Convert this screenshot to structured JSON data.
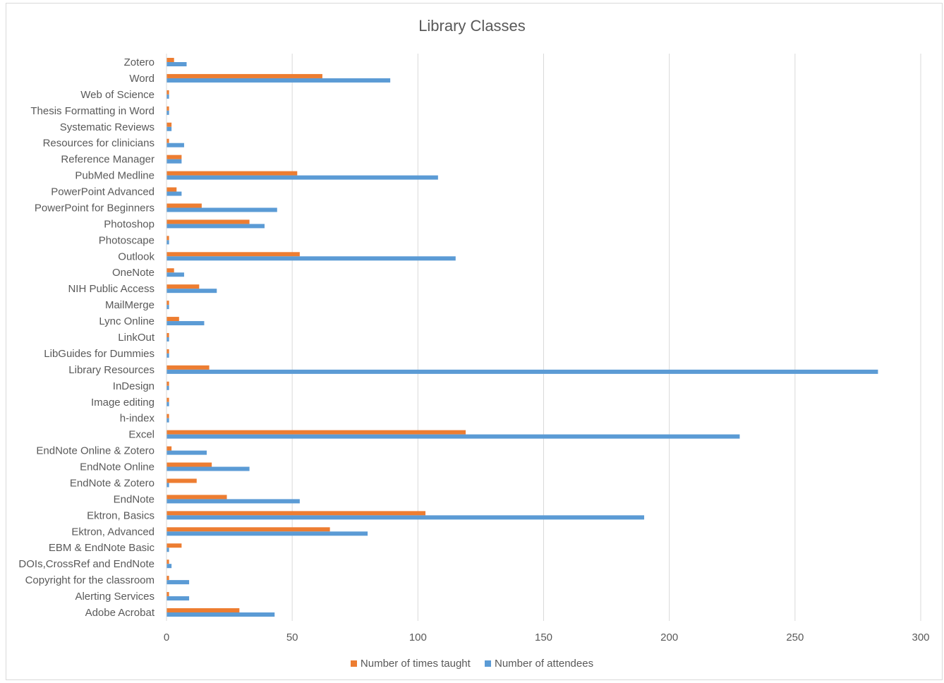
{
  "colors": {
    "taught": "#ed7d31",
    "attendees": "#5b9bd5",
    "grid": "#d9d9d9",
    "text": "#595959"
  },
  "chart_data": {
    "type": "bar",
    "orientation": "horizontal",
    "title": "Library Classes",
    "xlim": [
      0,
      300
    ],
    "xticks": [
      0,
      50,
      100,
      150,
      200,
      250,
      300
    ],
    "grid": true,
    "legend": "bottom",
    "categories": [
      "Zotero",
      "Word",
      "Web of Science",
      "Thesis Formatting in Word",
      "Systematic Reviews",
      "Resources for clinicians",
      "Reference Manager",
      "PubMed Medline",
      "PowerPoint Advanced",
      "PowerPoint for Beginners",
      "Photoshop",
      "Photoscape",
      "Outlook",
      "OneNote",
      "NIH Public Access",
      "MailMerge",
      "Lync Online",
      "LinkOut",
      "LibGuides for Dummies",
      "Library Resources",
      "InDesign",
      "Image editing",
      "h-index",
      "Excel",
      "EndNote Online & Zotero",
      "EndNote Online",
      "EndNote & Zotero",
      "EndNote",
      "Ektron, Basics",
      "Ektron, Advanced",
      "EBM & EndNote Basic",
      "DOIs,CrossRef and EndNote",
      "Copyright for the classroom",
      "Alerting Services",
      "Adobe Acrobat"
    ],
    "series": [
      {
        "name": "Number of times taught",
        "values": [
          3,
          62,
          1,
          1,
          2,
          1,
          6,
          52,
          4,
          14,
          33,
          1,
          53,
          3,
          13,
          1,
          5,
          1,
          1,
          17,
          1,
          1,
          1,
          119,
          2,
          18,
          12,
          24,
          103,
          65,
          6,
          1,
          1,
          1,
          29
        ]
      },
      {
        "name": "Number of attendees",
        "values": [
          8,
          89,
          1,
          1,
          2,
          7,
          6,
          108,
          6,
          44,
          39,
          1,
          115,
          7,
          20,
          1,
          15,
          1,
          1,
          283,
          1,
          1,
          1,
          228,
          16,
          33,
          1,
          53,
          190,
          80,
          1,
          2,
          9,
          9,
          43
        ]
      }
    ]
  }
}
